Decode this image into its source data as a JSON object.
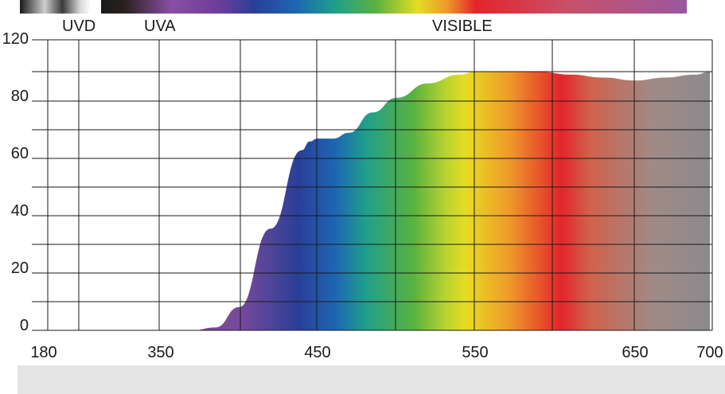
{
  "chart_data": {
    "type": "area",
    "title": "",
    "xlabel": "",
    "ylabel": "",
    "x_ticks": [
      "180",
      "350",
      "450",
      "550",
      "650",
      "700"
    ],
    "y_ticks": [
      "0",
      "20",
      "40",
      "60",
      "80",
      "120"
    ],
    "ylim": [
      0,
      100
    ],
    "band_labels": [
      "UVD",
      "UVA",
      "VISIBLE"
    ],
    "grid": true,
    "series": [
      {
        "x": [
          180,
          300,
          350,
          370,
          385,
          400,
          420,
          440,
          445,
          450,
          460,
          470,
          485,
          500,
          520,
          540,
          550,
          570,
          590,
          610,
          630,
          650,
          670,
          690,
          700
        ],
        "y": [
          0,
          0,
          0,
          0,
          1,
          8,
          35,
          62,
          65,
          66,
          66,
          68,
          75,
          80,
          85,
          88,
          89,
          89,
          89,
          88,
          87,
          86,
          87,
          88,
          89
        ]
      }
    ]
  },
  "colors": {
    "spectrum": [
      "#7a4a9a",
      "#2a3f97",
      "#1d64b4",
      "#1fa08a",
      "#5ab23e",
      "#b8d330",
      "#e6dd23",
      "#ee9a2a",
      "#e4242a",
      "#d0614a",
      "#a08a86",
      "#8a8a8f"
    ],
    "uvd_band": [
      "#1a1a1a",
      "#bdbdbd",
      "#1a1a1a"
    ],
    "footer": "#e4e4e4"
  }
}
